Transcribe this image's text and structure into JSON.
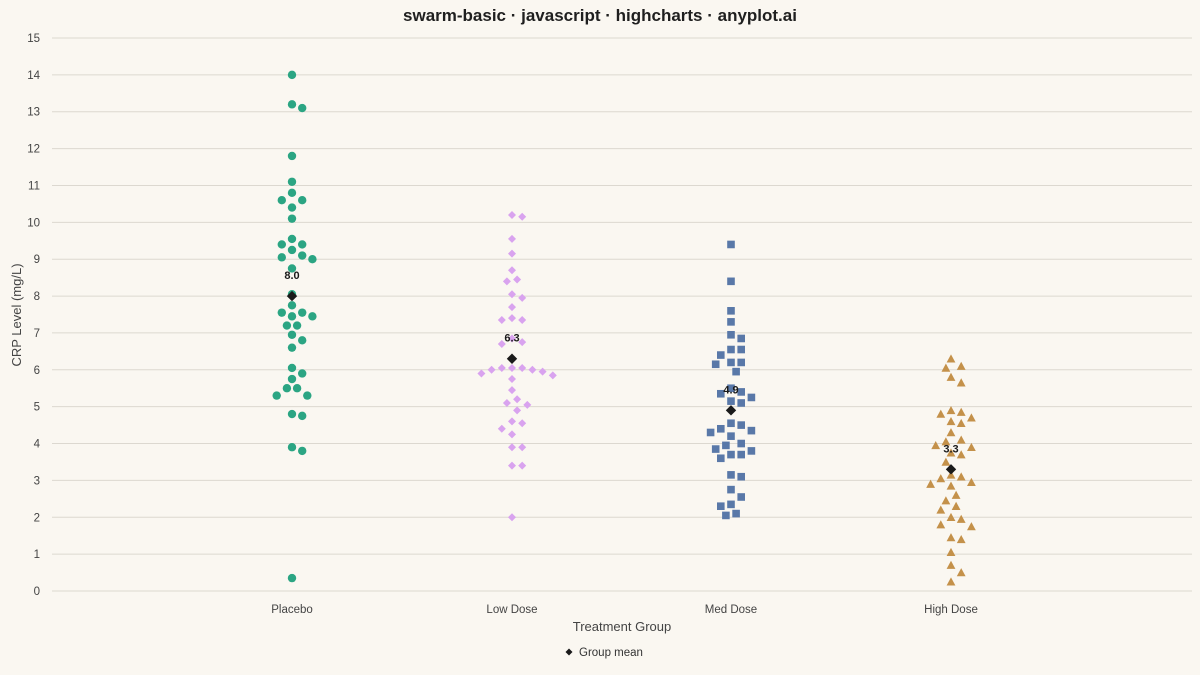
{
  "chart_data": {
    "type": "scatter",
    "subtype": "swarm",
    "title": "swarm-basic · javascript · highcharts · anyplot.ai",
    "xlabel": "Treatment Group",
    "ylabel": "CRP Level (mg/L)",
    "ylim": [
      0,
      15
    ],
    "yticks": [
      0,
      1,
      2,
      3,
      4,
      5,
      6,
      7,
      8,
      9,
      10,
      11,
      12,
      13,
      14,
      15
    ],
    "grid": true,
    "legend": {
      "placement": "bottom-center",
      "entries": [
        "Group mean"
      ]
    },
    "categories": [
      "Placebo",
      "Low Dose",
      "Med Dose",
      "High Dose"
    ],
    "series": [
      {
        "category": "Placebo",
        "color": "#2ba583",
        "marker": "circle",
        "values": [
          14.0,
          13.2,
          13.1,
          11.8,
          11.1,
          10.8,
          10.6,
          10.6,
          10.4,
          10.1,
          9.55,
          9.4,
          9.4,
          9.25,
          9.1,
          9.05,
          9.0,
          8.75,
          8.05,
          7.75,
          7.55,
          7.55,
          7.45,
          7.45,
          7.2,
          7.2,
          6.95,
          6.8,
          6.6,
          6.05,
          5.9,
          5.75,
          5.5,
          5.5,
          5.3,
          5.3,
          4.8,
          4.75,
          3.9,
          3.8,
          0.35
        ],
        "mean": 8.0,
        "mean_label": "8.0"
      },
      {
        "category": "Low Dose",
        "color": "#d9a3ef",
        "marker": "diamond",
        "values": [
          10.2,
          10.15,
          9.55,
          9.15,
          8.7,
          8.45,
          8.4,
          8.05,
          7.95,
          7.7,
          7.4,
          7.35,
          7.35,
          6.85,
          6.75,
          6.7,
          6.05,
          6.05,
          6.05,
          6.0,
          6.0,
          5.95,
          5.9,
          5.85,
          5.75,
          5.45,
          5.2,
          5.1,
          5.05,
          4.9,
          4.6,
          4.55,
          4.4,
          4.25,
          3.9,
          3.9,
          3.4,
          3.4,
          2.0
        ],
        "mean": 6.3,
        "mean_label": "6.3"
      },
      {
        "category": "Med Dose",
        "color": "#5978a8",
        "marker": "square",
        "values": [
          9.4,
          8.4,
          7.6,
          7.3,
          6.95,
          6.85,
          6.55,
          6.55,
          6.4,
          6.2,
          6.2,
          6.15,
          5.95,
          5.5,
          5.4,
          5.35,
          5.25,
          5.15,
          5.1,
          4.55,
          4.5,
          4.4,
          4.35,
          4.3,
          4.2,
          4.0,
          3.95,
          3.85,
          3.8,
          3.7,
          3.7,
          3.6,
          3.15,
          3.1,
          2.75,
          2.55,
          2.35,
          2.3,
          2.1,
          2.05
        ],
        "mean": 4.9,
        "mean_label": "4.9"
      },
      {
        "category": "High Dose",
        "color": "#c4914a",
        "marker": "triangle",
        "values": [
          6.3,
          6.1,
          6.05,
          5.8,
          5.65,
          4.9,
          4.85,
          4.8,
          4.7,
          4.6,
          4.55,
          4.3,
          4.1,
          4.05,
          3.95,
          3.9,
          3.75,
          3.7,
          3.5,
          3.15,
          3.1,
          3.05,
          2.95,
          2.9,
          2.85,
          2.6,
          2.45,
          2.3,
          2.2,
          2.0,
          1.95,
          1.8,
          1.75,
          1.45,
          1.4,
          1.05,
          0.7,
          0.5,
          0.25
        ],
        "mean": 3.3,
        "mean_label": "3.3"
      }
    ]
  }
}
